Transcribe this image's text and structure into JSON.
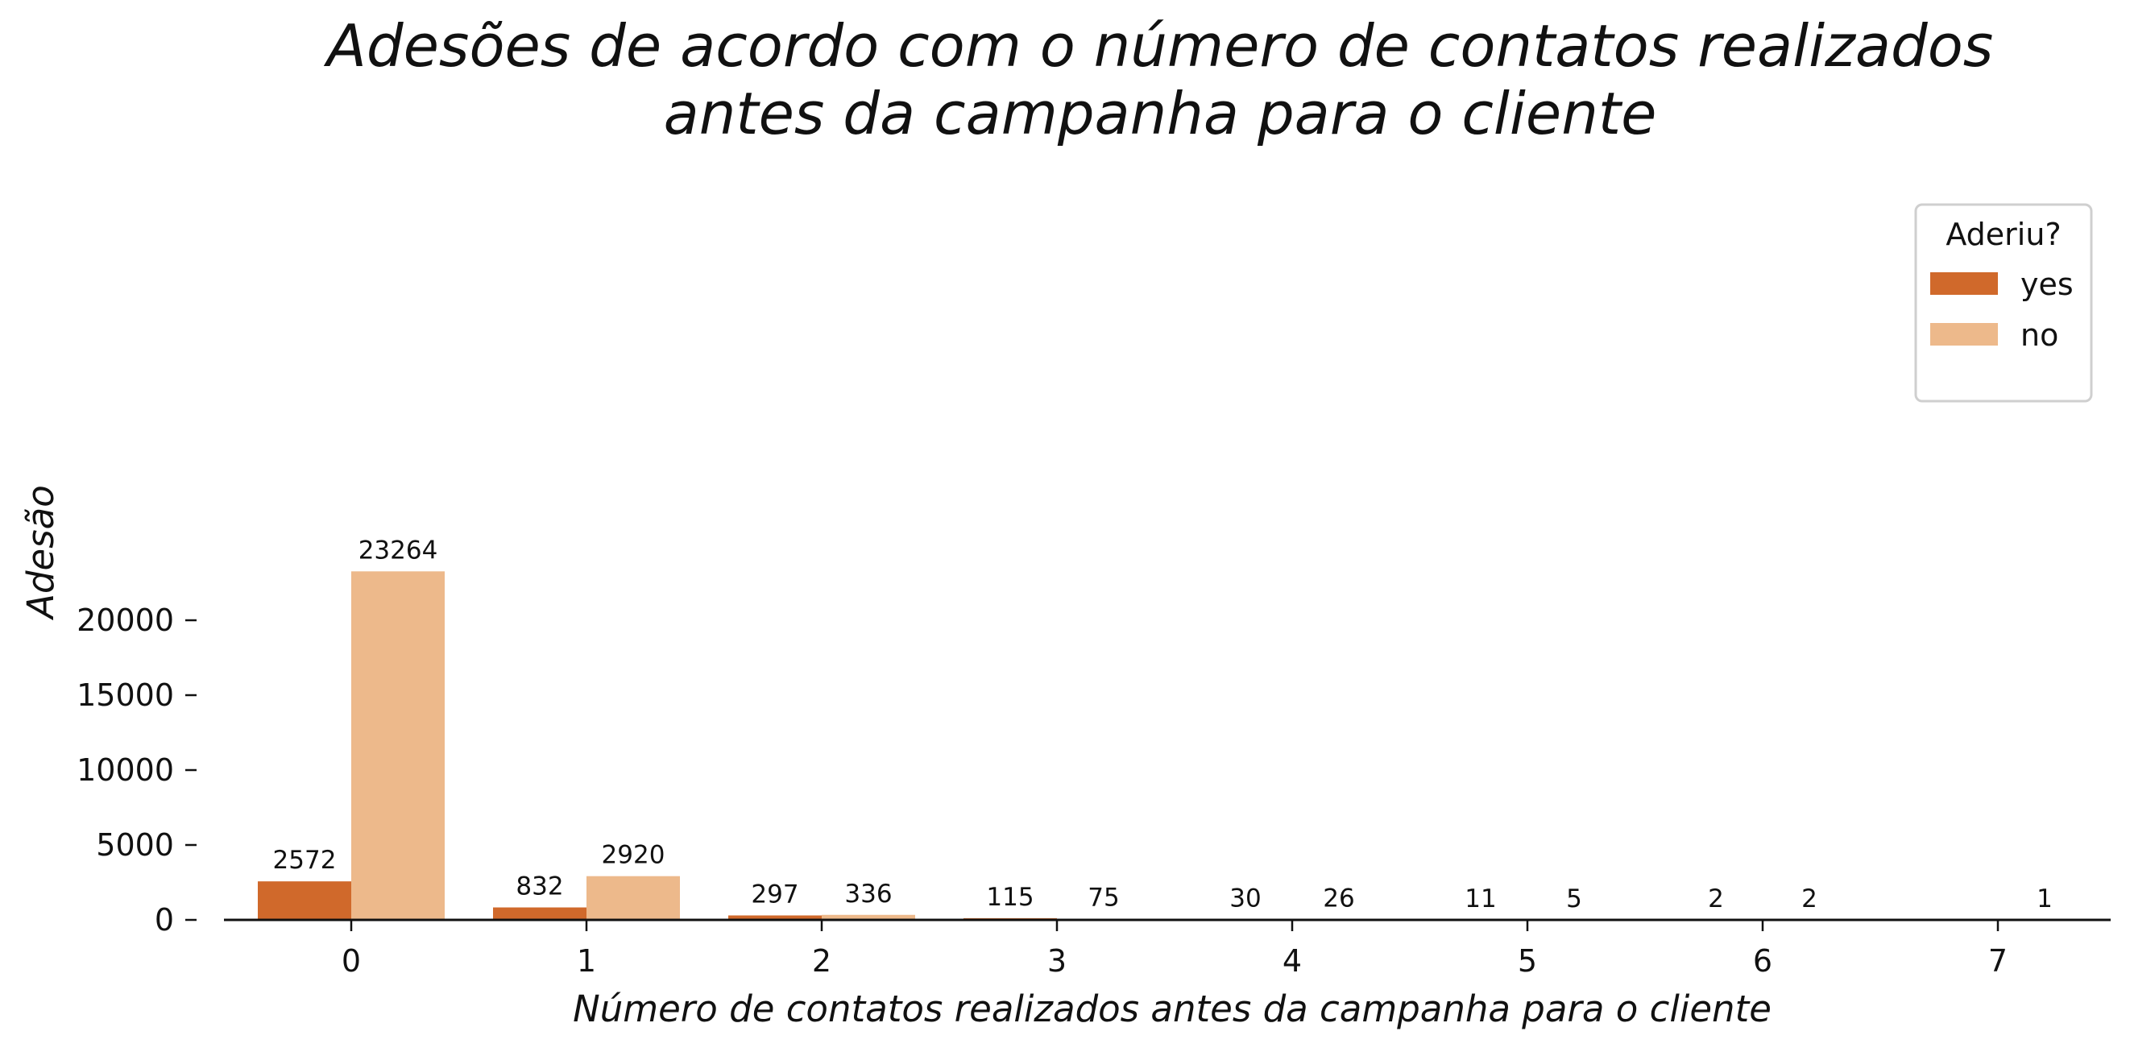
{
  "chart_data": {
    "type": "bar",
    "title": [
      "Adesões de acordo com o número de contatos realizados",
      "antes da campanha para o cliente"
    ],
    "xlabel": "Número de contatos realizados antes da campanha para o cliente",
    "ylabel": "Adesão",
    "categories": [
      "0",
      "1",
      "2",
      "3",
      "4",
      "5",
      "6",
      "7"
    ],
    "series": [
      {
        "name": "yes",
        "color": "#d0692b",
        "values": [
          2572,
          832,
          297,
          115,
          30,
          11,
          2,
          null
        ]
      },
      {
        "name": "no",
        "color": "#edb98b",
        "values": [
          23264,
          2920,
          336,
          75,
          26,
          5,
          2,
          1
        ]
      }
    ],
    "yticks": [
      0,
      5000,
      10000,
      15000,
      20000
    ],
    "ylim": [
      0,
      24500
    ],
    "legend": {
      "title": "Aderiu?",
      "position": "top-right"
    },
    "grid": false
  }
}
